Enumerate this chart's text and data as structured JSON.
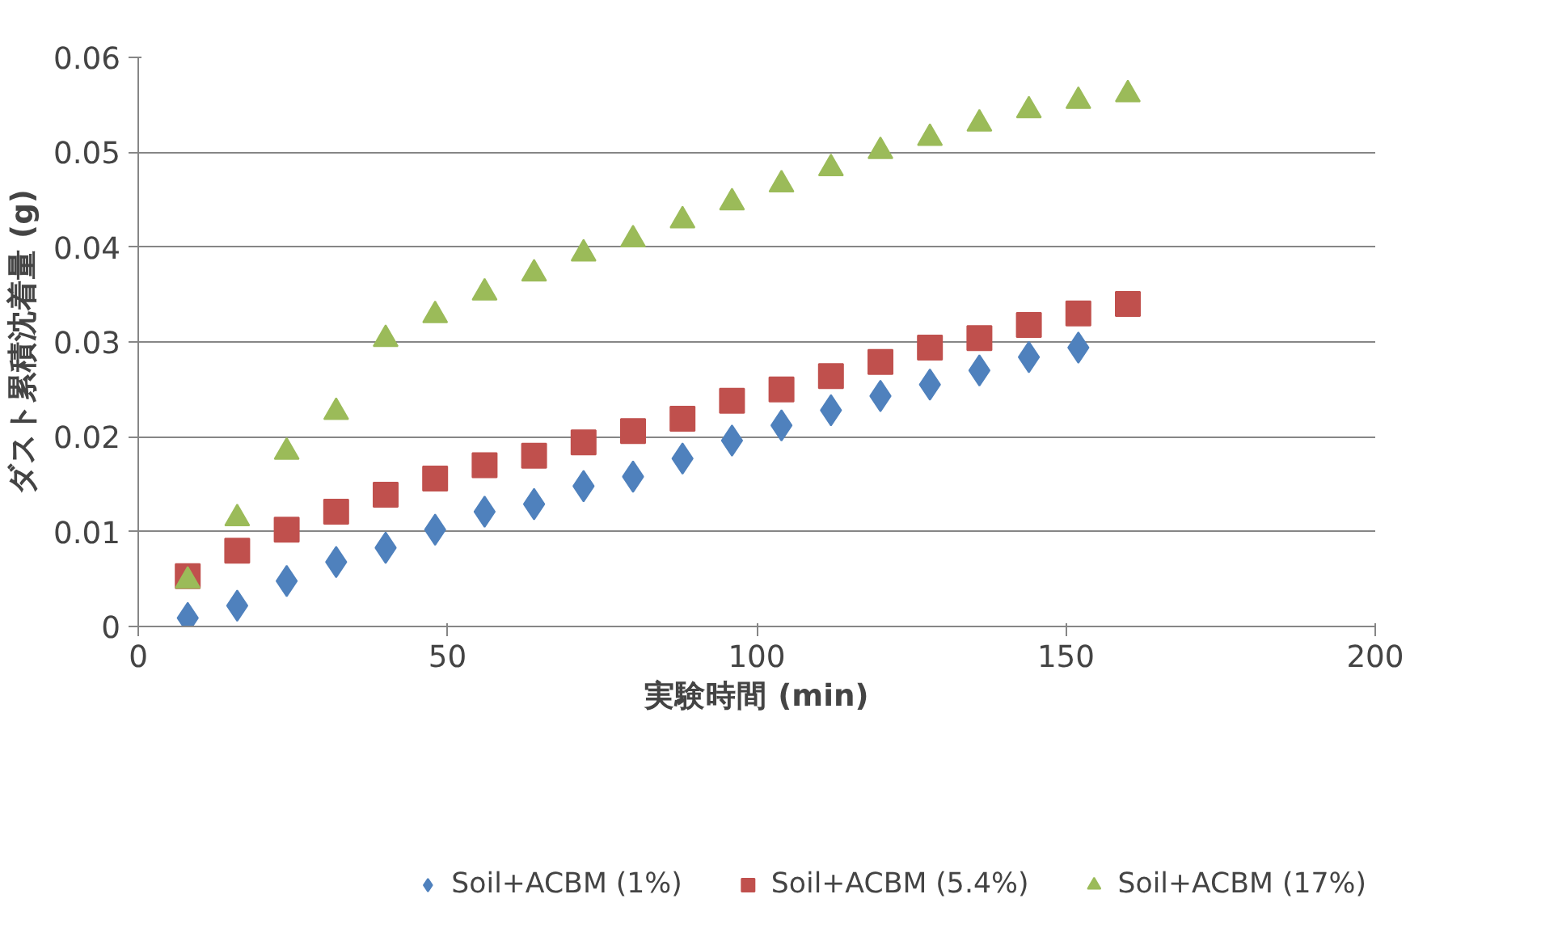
{
  "chart_data": {
    "type": "scatter",
    "xlabel": "実験時間 (min)",
    "ylabel": "ダスト累積沈着量 (g)",
    "xlim": [
      0,
      200
    ],
    "xticks": [
      0,
      50,
      100,
      150,
      200
    ],
    "ylim": [
      0,
      0.06
    ],
    "yticks": [
      0,
      0.01,
      0.02,
      0.03,
      0.04,
      0.05,
      0.06
    ],
    "grid": "y",
    "legend": "bottom",
    "series": [
      {
        "name": "Soil+ACBM (1%)",
        "color": "#4f81bd",
        "marker": "diamond",
        "x": [
          8,
          16,
          24,
          32,
          40,
          48,
          56,
          64,
          72,
          80,
          88,
          96,
          104,
          112,
          120,
          128,
          136,
          144,
          152
        ],
        "values": [
          0.0009,
          0.0022,
          0.0048,
          0.0068,
          0.0083,
          0.0102,
          0.0121,
          0.0129,
          0.0148,
          0.0158,
          0.0177,
          0.0196,
          0.0212,
          0.0228,
          0.0243,
          0.0255,
          0.027,
          0.0284,
          0.0294
        ]
      },
      {
        "name": "Soil+ACBM (5.4%)",
        "color": "#c0504d",
        "marker": "square",
        "x": [
          8,
          16,
          24,
          32,
          40,
          48,
          56,
          64,
          72,
          80,
          88,
          96,
          104,
          112,
          120,
          128,
          136,
          144,
          152,
          160
        ],
        "values": [
          0.0053,
          0.008,
          0.0102,
          0.0121,
          0.0139,
          0.0156,
          0.017,
          0.018,
          0.0194,
          0.0206,
          0.0219,
          0.0238,
          0.025,
          0.0264,
          0.0279,
          0.0294,
          0.0304,
          0.0318,
          0.033,
          0.034
        ]
      },
      {
        "name": "Soil+ACBM (17%)",
        "color": "#9bbb59",
        "marker": "triangle",
        "x": [
          8,
          16,
          24,
          32,
          40,
          48,
          56,
          64,
          72,
          80,
          88,
          96,
          104,
          112,
          120,
          128,
          136,
          144,
          152,
          160
        ],
        "values": [
          0.0048,
          0.0114,
          0.0184,
          0.0226,
          0.0303,
          0.0328,
          0.0352,
          0.0372,
          0.0393,
          0.0408,
          0.0428,
          0.0447,
          0.0466,
          0.0483,
          0.0501,
          0.0515,
          0.053,
          0.0544,
          0.0554,
          0.0561
        ]
      }
    ]
  }
}
